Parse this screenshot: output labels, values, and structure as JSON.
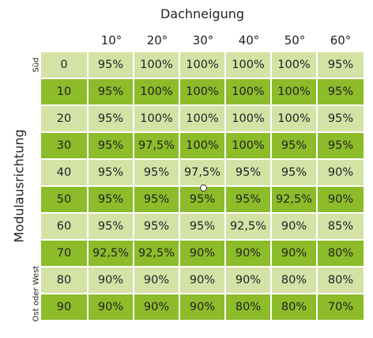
{
  "chart_data": {
    "type": "table",
    "title": "",
    "column_axis_title": "Dachneigung",
    "row_axis_title": "Modulausrichtung",
    "row_edge_labels": {
      "top": "Süd",
      "bottom": "Ost oder West"
    },
    "columns": [
      "10°",
      "20°",
      "30°",
      "40°",
      "50°",
      "60°"
    ],
    "rows": [
      {
        "label": "0",
        "values": [
          "95%",
          "100%",
          "100%",
          "100%",
          "100%",
          "95%"
        ]
      },
      {
        "label": "10",
        "values": [
          "95%",
          "100%",
          "100%",
          "100%",
          "100%",
          "95%"
        ]
      },
      {
        "label": "20",
        "values": [
          "95%",
          "100%",
          "100%",
          "100%",
          "100%",
          "95%"
        ]
      },
      {
        "label": "30",
        "values": [
          "95%",
          "97,5%",
          "100%",
          "100%",
          "95%",
          "95%"
        ]
      },
      {
        "label": "40",
        "values": [
          "95%",
          "95%",
          "97,5%",
          "95%",
          "95%",
          "90%"
        ]
      },
      {
        "label": "50",
        "values": [
          "95%",
          "95%",
          "95%",
          "95%",
          "92,5%",
          "90%"
        ]
      },
      {
        "label": "60",
        "values": [
          "95%",
          "95%",
          "95%",
          "92,5%",
          "90%",
          "85%"
        ]
      },
      {
        "label": "70",
        "values": [
          "92,5%",
          "92,5%",
          "90%",
          "90%",
          "90%",
          "80%"
        ]
      },
      {
        "label": "80",
        "values": [
          "90%",
          "90%",
          "90%",
          "90%",
          "80%",
          "80%"
        ]
      },
      {
        "label": "90",
        "values": [
          "90%",
          "90%",
          "90%",
          "80%",
          "80%",
          "70%"
        ]
      }
    ],
    "marker": {
      "row": "50",
      "column": "30°"
    },
    "colors": {
      "light_row": "#d4e2a6",
      "dark_row": "#8cbc2a",
      "border": "#ffffff"
    }
  }
}
